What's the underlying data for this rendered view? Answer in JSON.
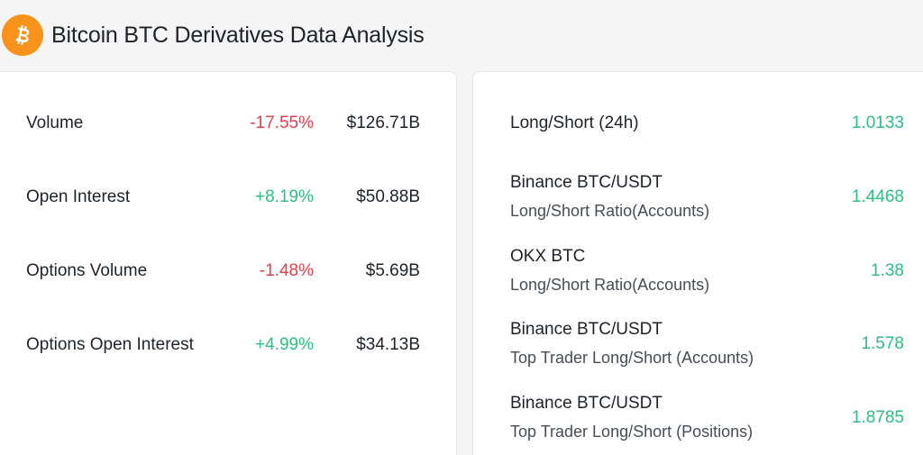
{
  "header": {
    "title": "Bitcoin BTC Derivatives Data Analysis",
    "logo_icon": "bitcoin-icon",
    "logo_color": "#f7931a"
  },
  "left_panel": {
    "rows": [
      {
        "label": "Volume",
        "change": "-17.55%",
        "value": "$126.71B",
        "direction": "down"
      },
      {
        "label": "Open Interest",
        "change": "+8.19%",
        "value": "$50.88B",
        "direction": "up"
      },
      {
        "label": "Options Volume",
        "change": "-1.48%",
        "value": "$5.69B",
        "direction": "down"
      },
      {
        "label": "Options Open Interest",
        "change": "+4.99%",
        "value": "$34.13B",
        "direction": "up"
      }
    ]
  },
  "right_panel": {
    "rows": [
      {
        "title": "Long/Short (24h)",
        "subtitle": "",
        "value": "1.0133"
      },
      {
        "title": "Binance BTC/USDT",
        "subtitle": "Long/Short Ratio(Accounts)",
        "value": "1.4468"
      },
      {
        "title": "OKX BTC",
        "subtitle": "Long/Short Ratio(Accounts)",
        "value": "1.38"
      },
      {
        "title": "Binance BTC/USDT",
        "subtitle": "Top Trader Long/Short (Accounts)",
        "value": "1.578"
      },
      {
        "title": "Binance BTC/USDT",
        "subtitle": "Top Trader Long/Short (Positions)",
        "value": "1.8785"
      }
    ]
  },
  "colors": {
    "negative": "#e0404d",
    "positive": "#2ebd85"
  }
}
